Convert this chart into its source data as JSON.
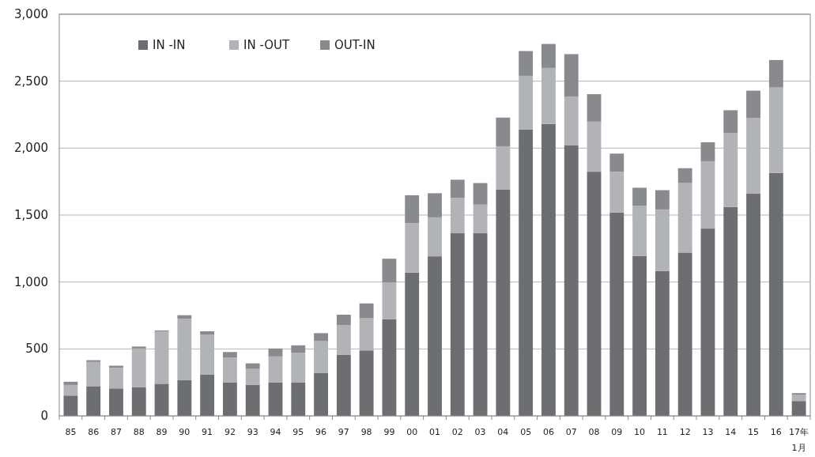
{
  "chart_data": {
    "type": "bar",
    "stacked": true,
    "categories": [
      "85",
      "86",
      "87",
      "88",
      "89",
      "90",
      "91",
      "92",
      "93",
      "94",
      "95",
      "96",
      "97",
      "98",
      "99",
      "00",
      "01",
      "02",
      "03",
      "04",
      "05",
      "06",
      "07",
      "08",
      "09",
      "10",
      "11",
      "12",
      "13",
      "14",
      "15",
      "16",
      "17年\n1月"
    ],
    "series": [
      {
        "name": "IN -IN",
        "color": "#6d6e71",
        "values": [
          152,
          222,
          205,
          213,
          240,
          266,
          307,
          248,
          231,
          248,
          248,
          319,
          455,
          489,
          721,
          1071,
          1192,
          1364,
          1364,
          1689,
          2140,
          2180,
          2020,
          1824,
          1519,
          1194,
          1083,
          1220,
          1399,
          1560,
          1662,
          1815,
          111
        ]
      },
      {
        "name": "IN -OUT",
        "color": "#b2b3b6",
        "values": [
          79,
          181,
          154,
          290,
          390,
          459,
          299,
          188,
          120,
          196,
          223,
          239,
          222,
          240,
          275,
          369,
          291,
          264,
          214,
          325,
          400,
          419,
          366,
          374,
          305,
          375,
          459,
          519,
          503,
          553,
          562,
          638,
          48
        ]
      },
      {
        "name": "OUT-IN",
        "color": "#898a8e",
        "values": [
          24,
          13,
          16,
          15,
          8,
          27,
          26,
          41,
          41,
          59,
          56,
          60,
          79,
          111,
          178,
          208,
          180,
          136,
          161,
          214,
          185,
          179,
          316,
          205,
          135,
          135,
          144,
          111,
          142,
          170,
          205,
          205,
          11
        ]
      }
    ],
    "ylim": [
      0,
      3000
    ],
    "yticks": [
      {
        "value": 0,
        "label": "0"
      },
      {
        "value": 500,
        "label": "500"
      },
      {
        "value": 1000,
        "label": "1,000"
      },
      {
        "value": 1500,
        "label": "1,500"
      },
      {
        "value": 2000,
        "label": "2,000"
      },
      {
        "value": 2500,
        "label": "2,500"
      },
      {
        "value": 3000,
        "label": "3,000"
      }
    ],
    "grid": "y",
    "legend": "top left"
  }
}
